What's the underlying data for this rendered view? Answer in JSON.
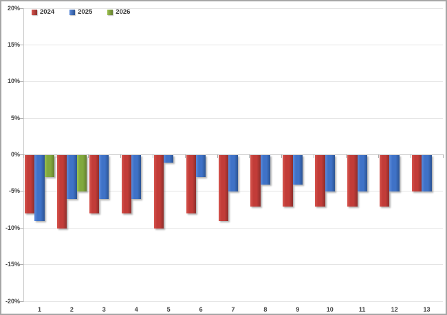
{
  "chart_data": {
    "type": "bar",
    "title": "",
    "xlabel": "",
    "ylabel": "",
    "categories": [
      "1",
      "2",
      "3",
      "4",
      "5",
      "6",
      "7",
      "8",
      "9",
      "10",
      "11",
      "12",
      "13"
    ],
    "series": [
      {
        "name": "2024",
        "color": "#c23c38",
        "color_light": "#d6554e",
        "color_dark": "#8e2f2c",
        "values": [
          -8,
          -10,
          -8,
          -8,
          -10,
          -8,
          -9,
          -7,
          -7,
          -7,
          -7,
          -7,
          -5
        ]
      },
      {
        "name": "2025",
        "color": "#3f72c7",
        "color_light": "#5c8bdc",
        "color_dark": "#2c5493",
        "values": [
          -9,
          -6,
          -6,
          -6,
          -1,
          -3,
          -5,
          -4,
          -4,
          -5,
          -5,
          -5,
          -5
        ]
      },
      {
        "name": "2026",
        "color": "#81a83d",
        "color_light": "#9dc250",
        "color_dark": "#647e2f",
        "values": [
          -3,
          -5,
          null,
          null,
          null,
          null,
          null,
          null,
          null,
          null,
          null,
          null,
          null
        ]
      }
    ],
    "ylim": [
      -20,
      20
    ],
    "y_ticks": [
      20,
      15,
      10,
      5,
      0,
      -5,
      -10,
      -15,
      -20
    ],
    "y_tick_labels": [
      "20%",
      "15%",
      "10%",
      "5%",
      "0%",
      "-5%",
      "-10%",
      "-15%",
      "-20%"
    ],
    "grid": true,
    "legend_position": "top-left",
    "colors": {
      "gridline": "#e4e4e4",
      "axis": "#c8c8c8",
      "tick": "#ababab",
      "label": "#404040",
      "border": "#a6a6a6",
      "background": "#ffffff"
    }
  }
}
